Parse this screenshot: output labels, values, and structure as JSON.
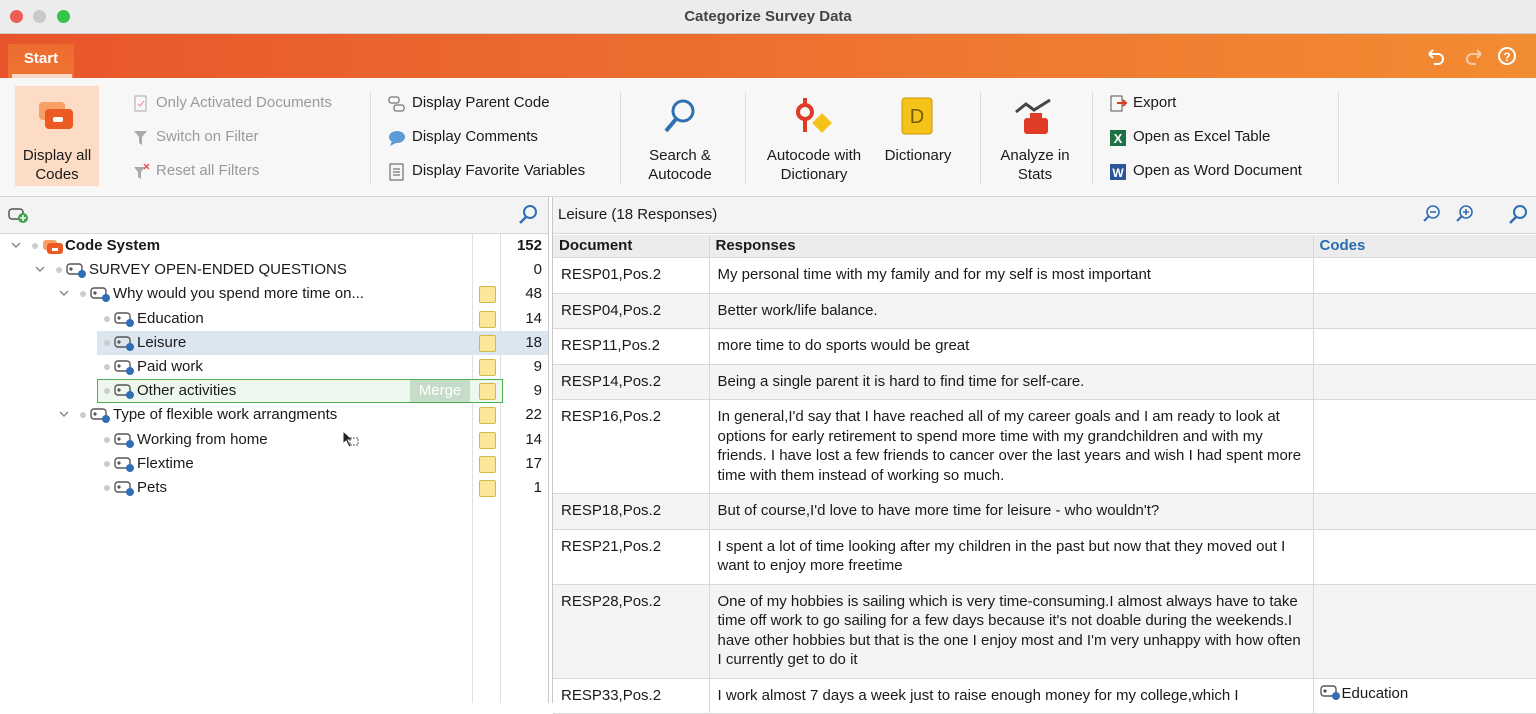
{
  "window": {
    "title": "Categorize Survey Data"
  },
  "ribbon": {
    "tab": "Start",
    "display_all_codes": "Display all Codes",
    "filters": [
      "Only Activated Documents",
      "Switch on Filter",
      "Reset all Filters"
    ],
    "display": [
      "Display Parent Code",
      "Display Comments",
      "Display Favorite Variables"
    ],
    "search_autocode": "Search & Autocode",
    "autocode_dictionary": "Autocode with Dictionary",
    "dictionary": "Dictionary",
    "analyze": "Analyze in Stats",
    "export": [
      "Export",
      "Open as Excel Table",
      "Open as Word Document"
    ]
  },
  "code_tree": {
    "label": "Code System",
    "count": "152",
    "children": [
      {
        "label": "SURVEY OPEN-ENDED QUESTIONS",
        "count": "0",
        "children": [
          {
            "label": "Why would you spend more time on...",
            "count": "48",
            "children": [
              {
                "label": "Education",
                "count": "14"
              },
              {
                "label": "Leisure",
                "count": "18",
                "selected": true
              },
              {
                "label": "Paid work",
                "count": "9"
              },
              {
                "label": "Other activities",
                "count": "9",
                "merge_hint": "Merge"
              }
            ]
          },
          {
            "label": "Type of flexible work arrangments",
            "count": "22",
            "children": [
              {
                "label": "Working from home",
                "count": "14"
              },
              {
                "label": "Flextime",
                "count": "17"
              },
              {
                "label": "Pets",
                "count": "1"
              }
            ]
          }
        ]
      }
    ]
  },
  "responses": {
    "title": "Leisure (18 Responses)",
    "columns": [
      "Document",
      "Responses",
      "Codes"
    ],
    "rows": [
      {
        "document": "RESP01,Pos.2",
        "response": "My personal time with my family and for my self is most important"
      },
      {
        "document": "RESP04,Pos.2",
        "response": "Better work/life balance."
      },
      {
        "document": "RESP11,Pos.2",
        "response": "more time to do sports would be great"
      },
      {
        "document": "RESP14,Pos.2",
        "response": "Being a single parent it is hard to find time for self-care."
      },
      {
        "document": "RESP16,Pos.2",
        "response": "In general,I'd say that I have reached all of my career goals and I am ready to look at options for early retirement to spend more time with my grandchildren and with my friends. I have lost a few friends to cancer over the last years and wish I had spent more time with them instead of working so much."
      },
      {
        "document": "RESP18,Pos.2",
        "response": "But of course,I'd love to have more time for leisure - who wouldn't?"
      },
      {
        "document": "RESP21,Pos.2",
        "response": "I spent a lot of time looking after my children in the past but now that they moved out I want to enjoy more freetime"
      },
      {
        "document": "RESP28,Pos.2",
        "response": "One of my hobbies is sailing which is very time-consuming.I almost always have to take time off work to go sailing for a few days because it's not doable during the weekends.I have other hobbies but that is the one I enjoy most and I'm very unhappy with how often I currently get to do it"
      },
      {
        "document": "RESP33,Pos.2",
        "response": "I work almost 7 days a week just to raise enough money for my college,which I",
        "code": "Education"
      }
    ]
  }
}
